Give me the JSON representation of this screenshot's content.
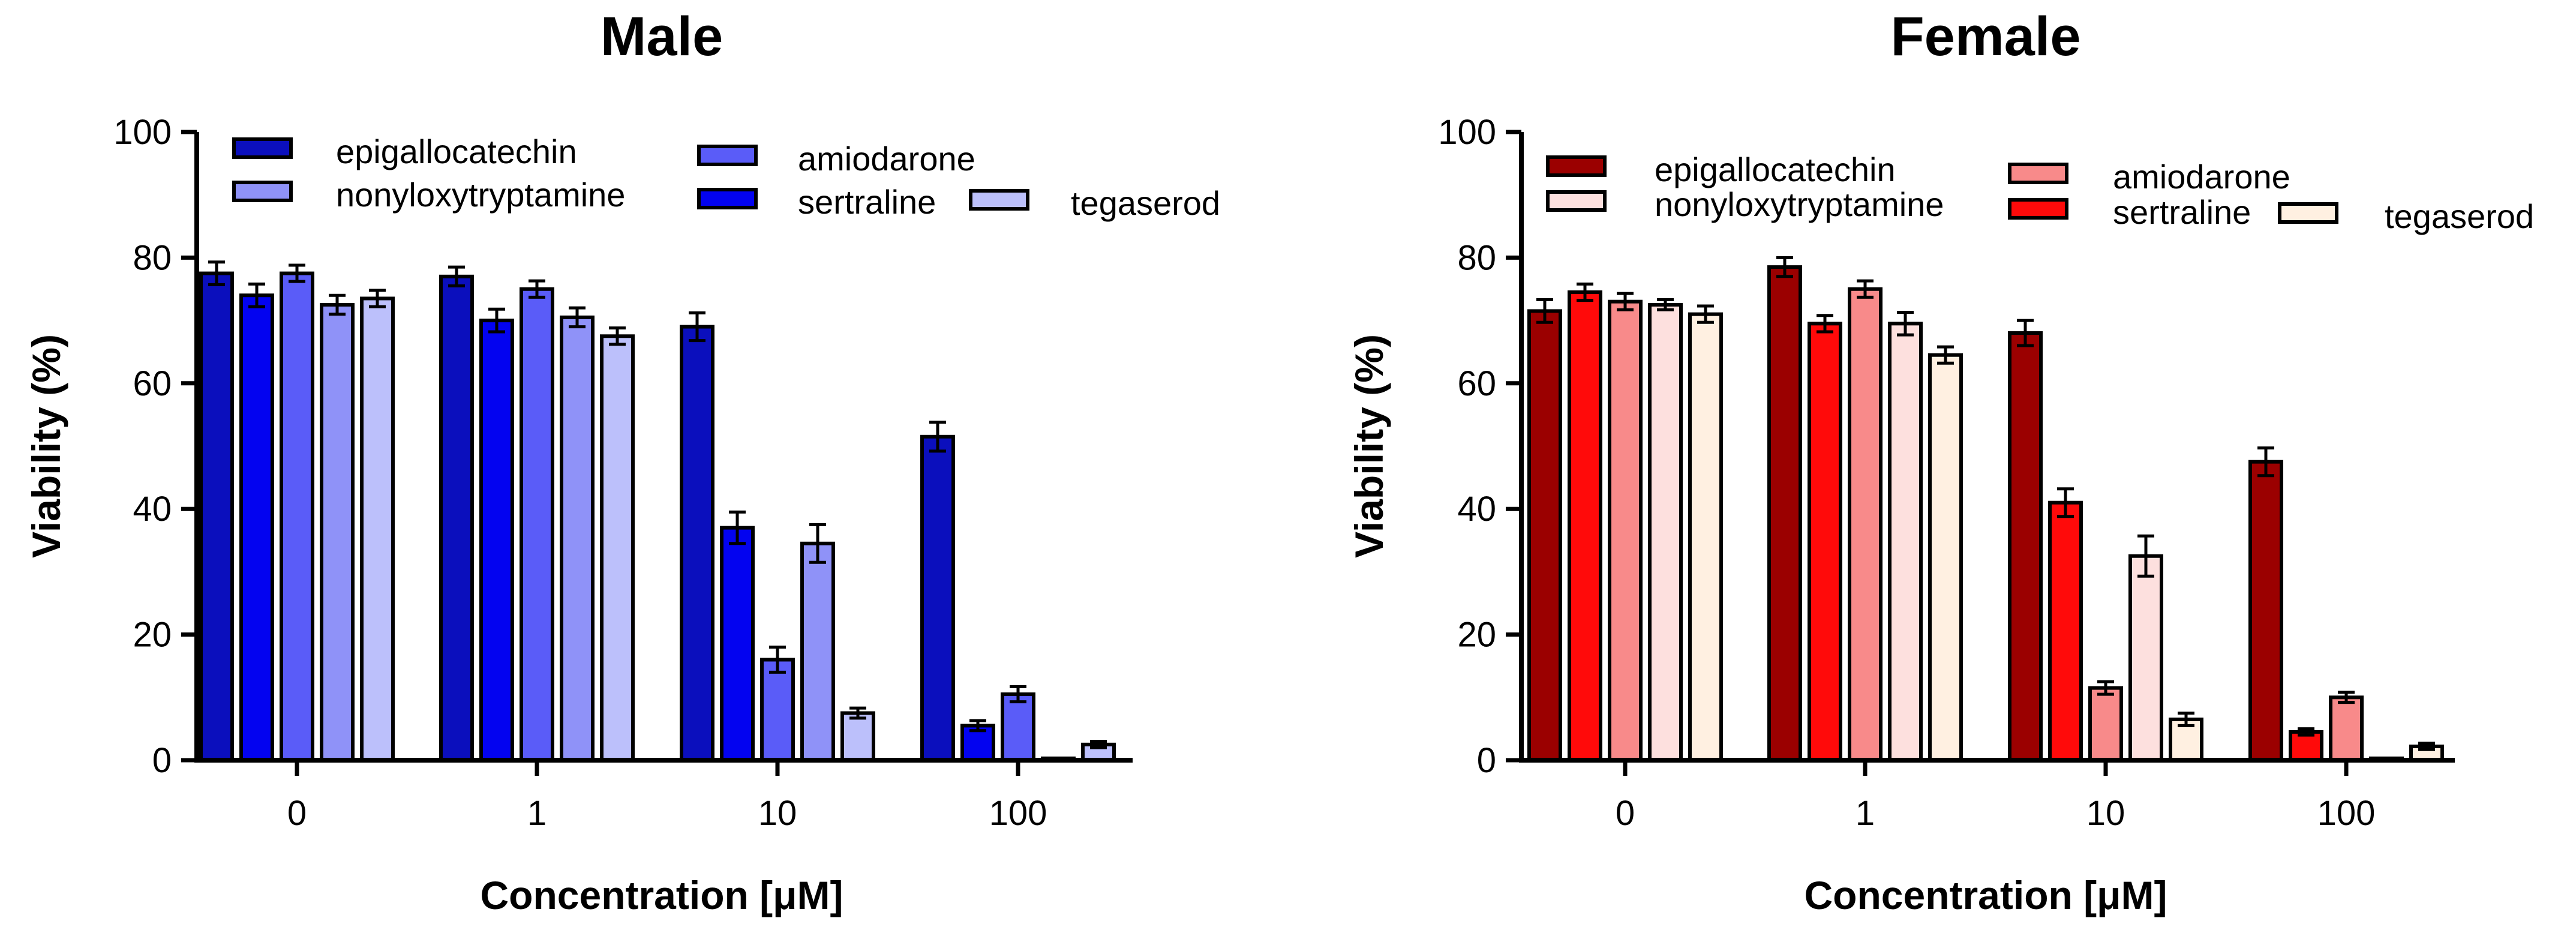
{
  "chart_data": [
    {
      "type": "bar",
      "title": "Male",
      "xlabel": "Concentration [μM]",
      "ylabel": "Viability (%)",
      "ylim": [
        0,
        100
      ],
      "yticks": [
        0,
        20,
        40,
        60,
        80,
        100
      ],
      "categories": [
        "0",
        "1",
        "10",
        "100"
      ],
      "series": [
        {
          "name": "epigallocatechin",
          "color": "#0b0fbd",
          "values": [
            77.5,
            77,
            69,
            51.5
          ],
          "errors": [
            1.8,
            1.5,
            2.2,
            2.3
          ]
        },
        {
          "name": "sertraline",
          "color": "#0303f0",
          "values": [
            74,
            70,
            37,
            5.5
          ],
          "errors": [
            1.8,
            1.8,
            2.5,
            0.8
          ]
        },
        {
          "name": "amiodarone",
          "color": "#5a5cf8",
          "values": [
            77.5,
            75,
            16,
            10.5
          ],
          "errors": [
            1.3,
            1.3,
            2.0,
            1.2
          ]
        },
        {
          "name": "nonyloxytryptamine",
          "color": "#8f92f8",
          "values": [
            72.5,
            70.5,
            34.5,
            0.3
          ],
          "errors": [
            1.5,
            1.5,
            3.0,
            0.2
          ]
        },
        {
          "name": "tegaserod",
          "color": "#bcc0fb",
          "values": [
            73.5,
            67.5,
            7.5,
            2.5
          ],
          "errors": [
            1.3,
            1.3,
            0.8,
            0.5
          ]
        }
      ]
    },
    {
      "type": "bar",
      "title": "Female",
      "xlabel": "Concentration [μM]",
      "ylabel": "Viability (%)",
      "ylim": [
        0,
        100
      ],
      "yticks": [
        0,
        20,
        40,
        60,
        80,
        100
      ],
      "categories": [
        "0",
        "1",
        "10",
        "100"
      ],
      "series": [
        {
          "name": "epigallocatechin",
          "color": "#9b0000",
          "values": [
            71.5,
            78.5,
            68,
            47.5
          ],
          "errors": [
            1.8,
            1.5,
            2.0,
            2.2
          ]
        },
        {
          "name": "sertraline",
          "color": "#ff0a0a",
          "values": [
            74.5,
            69.5,
            41,
            4.5
          ],
          "errors": [
            1.3,
            1.3,
            2.2,
            0.5
          ]
        },
        {
          "name": "amiodarone",
          "color": "#f88a8a",
          "values": [
            73,
            75,
            11.5,
            10
          ],
          "errors": [
            1.3,
            1.3,
            1.0,
            0.8
          ]
        },
        {
          "name": "nonyloxytryptamine",
          "color": "#fde0de",
          "values": [
            72.5,
            69.5,
            32.5,
            0.3
          ],
          "errors": [
            0.8,
            1.8,
            3.2,
            0.2
          ]
        },
        {
          "name": "tegaserod",
          "color": "#fff0e1",
          "values": [
            71,
            64.5,
            6.5,
            2.2
          ],
          "errors": [
            1.3,
            1.3,
            1.0,
            0.5
          ]
        }
      ]
    }
  ]
}
